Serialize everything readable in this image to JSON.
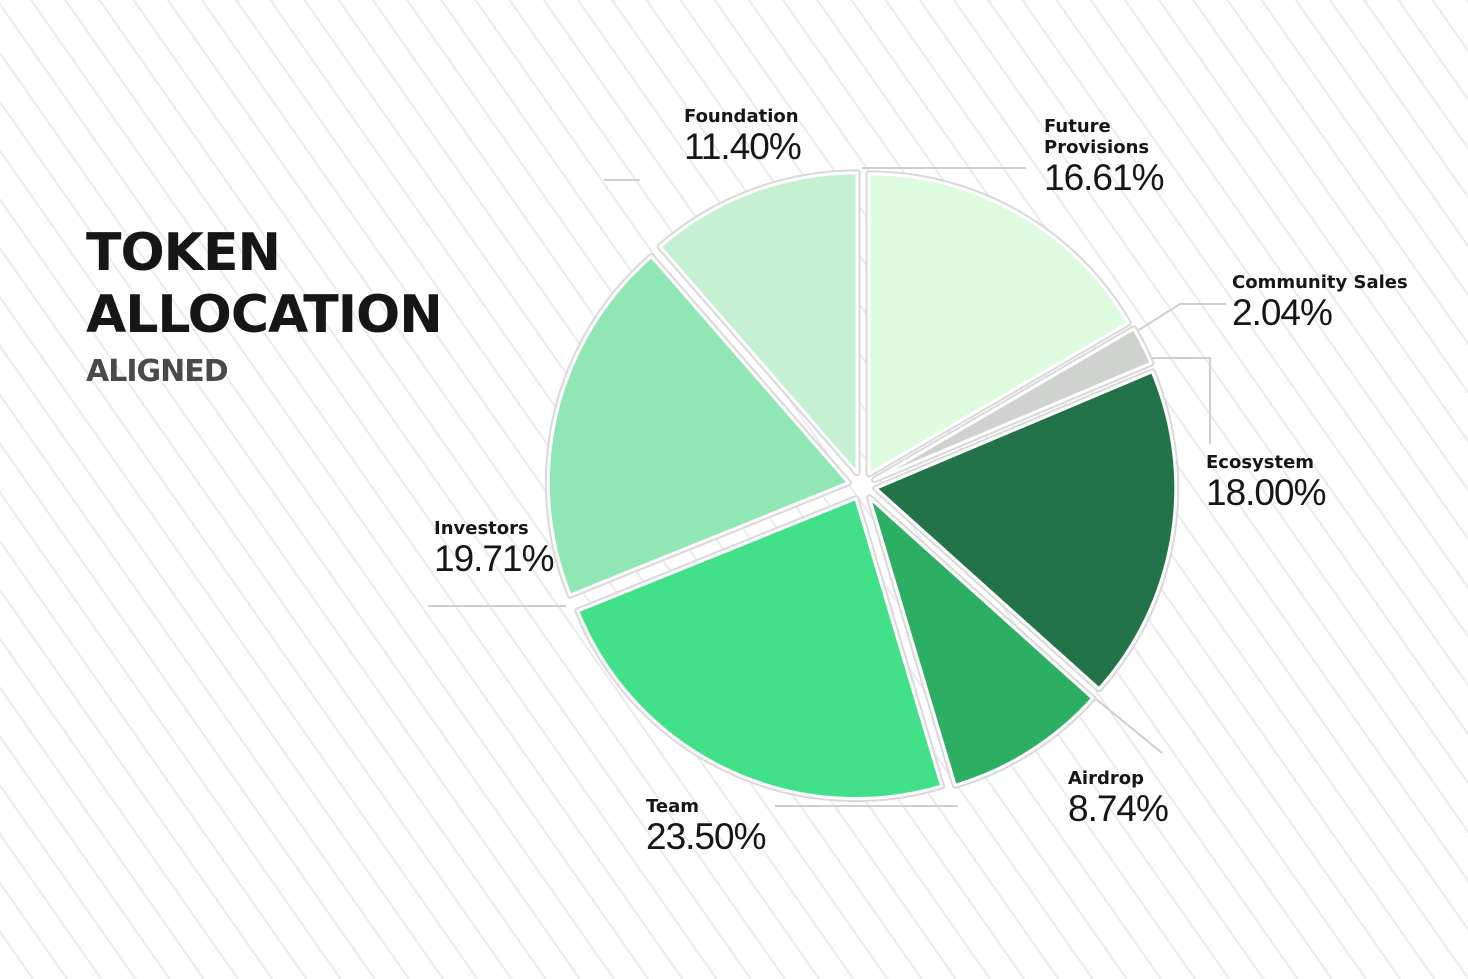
{
  "header": {
    "title_line1": "TOKEN",
    "title_line2": "ALLOCATION",
    "subtitle": "ALIGNED"
  },
  "chart_data": {
    "type": "pie",
    "title": "TOKEN ALLOCATION",
    "subtitle": "ALIGNED",
    "slices": [
      {
        "label": "Future Provisions",
        "display_label": "Future\nProvisions",
        "value": 16.61,
        "value_label": "16.61%",
        "color": "#dffbe0"
      },
      {
        "label": "Community Sales",
        "display_label": "Community Sales",
        "value": 2.04,
        "value_label": "2.04%",
        "color": "#d0d2d0"
      },
      {
        "label": "Ecosystem",
        "display_label": "Ecosystem",
        "value": 18.0,
        "value_label": "18.00%",
        "color": "#237349"
      },
      {
        "label": "Airdrop",
        "display_label": "Airdrop",
        "value": 8.74,
        "value_label": "8.74%",
        "color": "#2caf62"
      },
      {
        "label": "Team",
        "display_label": "Team",
        "value": 23.5,
        "value_label": "23.50%",
        "color": "#43e08a"
      },
      {
        "label": "Investors",
        "display_label": "Investors",
        "value": 19.71,
        "value_label": "19.71%",
        "color": "#90e6b5"
      },
      {
        "label": "Foundation",
        "display_label": "Foundation",
        "value": 11.4,
        "value_label": "11.40%",
        "color": "#c5f1d2"
      }
    ]
  }
}
